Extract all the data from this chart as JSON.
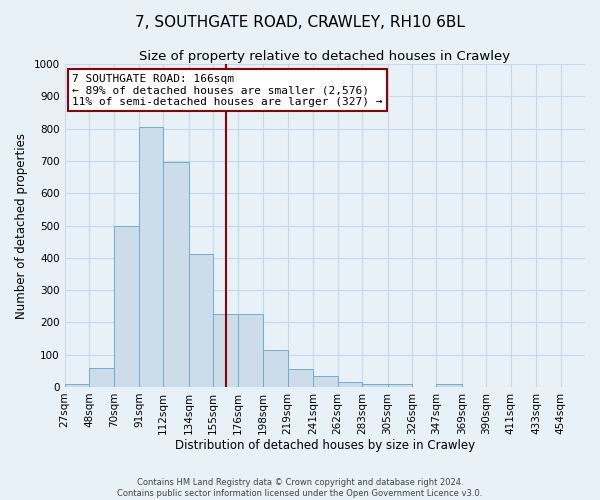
{
  "title": "7, SOUTHGATE ROAD, CRAWLEY, RH10 6BL",
  "subtitle": "Size of property relative to detached houses in Crawley",
  "xlabel": "Distribution of detached houses by size in Crawley",
  "ylabel": "Number of detached properties",
  "footer_line1": "Contains HM Land Registry data © Crown copyright and database right 2024.",
  "footer_line2": "Contains public sector information licensed under the Open Government Licence v3.0.",
  "bin_labels": [
    "27sqm",
    "48sqm",
    "70sqm",
    "91sqm",
    "112sqm",
    "134sqm",
    "155sqm",
    "176sqm",
    "198sqm",
    "219sqm",
    "241sqm",
    "262sqm",
    "283sqm",
    "305sqm",
    "326sqm",
    "347sqm",
    "369sqm",
    "390sqm",
    "411sqm",
    "433sqm",
    "454sqm"
  ],
  "bin_edges": [
    27,
    48,
    70,
    91,
    112,
    134,
    155,
    176,
    198,
    219,
    241,
    262,
    283,
    305,
    326,
    347,
    369,
    390,
    411,
    433,
    454
  ],
  "bar_heights": [
    8,
    60,
    500,
    805,
    698,
    412,
    225,
    225,
    115,
    55,
    35,
    15,
    10,
    8,
    0,
    10,
    0,
    0,
    0,
    0,
    0
  ],
  "bar_color": "#ccdce8",
  "bar_edge_color": "#6baed6",
  "vline_x": 166,
  "vline_color": "#8b0000",
  "annotation_text": "7 SOUTHGATE ROAD: 166sqm\n← 89% of detached houses are smaller (2,576)\n11% of semi-detached houses are larger (327) →",
  "annotation_box_facecolor": "#ffffff",
  "annotation_box_edgecolor": "#8b0000",
  "ylim": [
    0,
    1000
  ],
  "yticks": [
    0,
    100,
    200,
    300,
    400,
    500,
    600,
    700,
    800,
    900,
    1000
  ],
  "grid_color": "#c8d8e8",
  "bg_color": "#e8f0f8",
  "title_fontsize": 11,
  "subtitle_fontsize": 9.5,
  "axis_label_fontsize": 8.5,
  "tick_fontsize": 7.5,
  "annotation_fontsize": 8,
  "footer_fontsize": 6
}
